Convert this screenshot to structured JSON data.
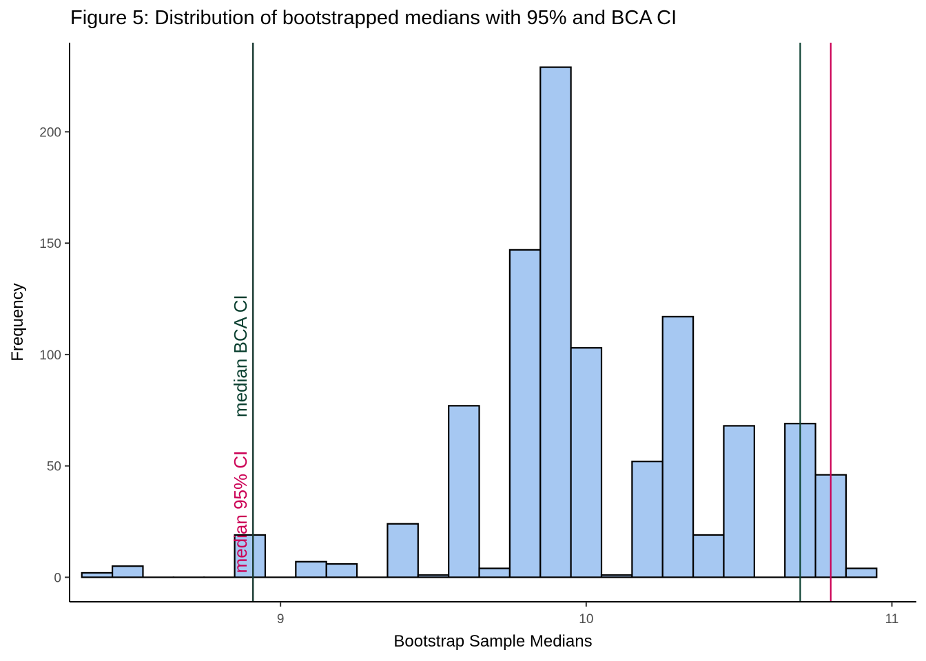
{
  "chart_data": {
    "type": "bar",
    "title": "Figure 5: Distribution of bootstrapped medians with 95% and BCA CI",
    "xlabel": "Bootstrap Sample Medians",
    "ylabel": "Frequency",
    "xlim": [
      8.31,
      11.08
    ],
    "ylim": [
      -11,
      240
    ],
    "x_ticks": [
      9,
      10,
      11
    ],
    "y_ticks": [
      0,
      50,
      100,
      150,
      200
    ],
    "grid": false,
    "bin_width": 0.1,
    "bins": [
      {
        "x_min": 8.35,
        "x_max": 8.45,
        "count": 2
      },
      {
        "x_min": 8.45,
        "x_max": 8.55,
        "count": 5
      },
      {
        "x_min": 8.55,
        "x_max": 8.65,
        "count": 0
      },
      {
        "x_min": 8.65,
        "x_max": 8.75,
        "count": 0
      },
      {
        "x_min": 8.75,
        "x_max": 8.85,
        "count": 0
      },
      {
        "x_min": 8.85,
        "x_max": 8.95,
        "count": 19
      },
      {
        "x_min": 8.95,
        "x_max": 9.05,
        "count": 0
      },
      {
        "x_min": 9.05,
        "x_max": 9.15,
        "count": 7
      },
      {
        "x_min": 9.15,
        "x_max": 9.25,
        "count": 6
      },
      {
        "x_min": 9.25,
        "x_max": 9.35,
        "count": 0
      },
      {
        "x_min": 9.35,
        "x_max": 9.45,
        "count": 24
      },
      {
        "x_min": 9.45,
        "x_max": 9.55,
        "count": 1
      },
      {
        "x_min": 9.55,
        "x_max": 9.65,
        "count": 77
      },
      {
        "x_min": 9.65,
        "x_max": 9.75,
        "count": 4
      },
      {
        "x_min": 9.75,
        "x_max": 9.85,
        "count": 147
      },
      {
        "x_min": 9.85,
        "x_max": 9.95,
        "count": 229
      },
      {
        "x_min": 9.95,
        "x_max": 10.05,
        "count": 103
      },
      {
        "x_min": 10.05,
        "x_max": 10.15,
        "count": 1
      },
      {
        "x_min": 10.15,
        "x_max": 10.25,
        "count": 52
      },
      {
        "x_min": 10.25,
        "x_max": 10.35,
        "count": 117
      },
      {
        "x_min": 10.35,
        "x_max": 10.45,
        "count": 19
      },
      {
        "x_min": 10.45,
        "x_max": 10.55,
        "count": 68
      },
      {
        "x_min": 10.55,
        "x_max": 10.65,
        "count": 0
      },
      {
        "x_min": 10.65,
        "x_max": 10.75,
        "count": 69
      },
      {
        "x_min": 10.75,
        "x_max": 10.85,
        "count": 46
      },
      {
        "x_min": 10.85,
        "x_max": 10.95,
        "count": 4
      }
    ],
    "reference_lines": [
      {
        "label": "median 95% CI",
        "x": [
          8.91,
          10.8
        ],
        "color": "#cc0055",
        "text_y": 0
      },
      {
        "label": "median BCA CI",
        "x": [
          8.91,
          10.7
        ],
        "color": "#0b4030",
        "text_y": 70
      }
    ],
    "colors": {
      "bar_fill": "#a6c8f2",
      "bar_stroke": "#000000"
    }
  }
}
